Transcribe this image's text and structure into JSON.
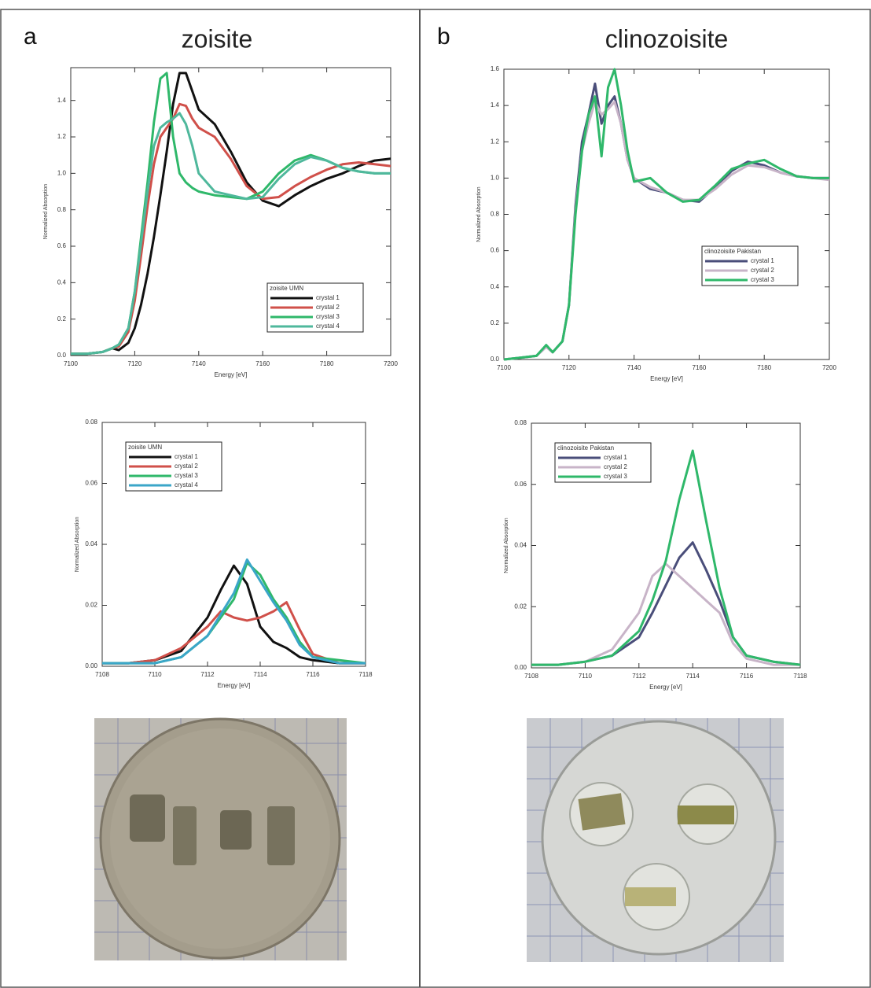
{
  "panels": [
    {
      "label": "a",
      "title": "zoisite"
    },
    {
      "label": "b",
      "title": "clinozoisite"
    }
  ],
  "chart_data": [
    {
      "type": "line",
      "x_label": "Energy [eV]",
      "y_label": "Normalized Absorption",
      "legend_title": "zoisite UMN",
      "legend_position": "lower right",
      "xlim": [
        7100,
        7200
      ],
      "ylim": [
        0,
        1.58
      ],
      "xticks": [
        7100,
        7120,
        7140,
        7160,
        7180,
        7200
      ],
      "yticks": [
        {
          "value": 0,
          "label": "0.0"
        },
        0.2,
        0.4,
        0.6,
        0.8,
        {
          "value": 1,
          "label": "1.0"
        },
        1.2,
        1.4
      ],
      "x": [
        7100,
        7105,
        7110,
        7113,
        7115,
        7118,
        7120,
        7122,
        7124,
        7126,
        7128,
        7130,
        7132,
        7134,
        7136,
        7138,
        7140,
        7145,
        7150,
        7155,
        7160,
        7165,
        7170,
        7175,
        7180,
        7185,
        7190,
        7195,
        7200
      ],
      "series": [
        {
          "name": "crystal 1",
          "color": "#111111",
          "values": [
            0.01,
            0.01,
            0.02,
            0.04,
            0.03,
            0.07,
            0.15,
            0.28,
            0.45,
            0.65,
            0.88,
            1.12,
            1.38,
            1.55,
            1.55,
            1.45,
            1.35,
            1.27,
            1.12,
            0.95,
            0.85,
            0.82,
            0.88,
            0.93,
            0.97,
            1.0,
            1.04,
            1.07,
            1.08
          ]
        },
        {
          "name": "crystal 2",
          "color": "#d0504a",
          "values": [
            0.01,
            0.01,
            0.02,
            0.04,
            0.05,
            0.13,
            0.3,
            0.55,
            0.82,
            1.05,
            1.2,
            1.25,
            1.3,
            1.38,
            1.37,
            1.3,
            1.25,
            1.2,
            1.08,
            0.93,
            0.86,
            0.87,
            0.93,
            0.98,
            1.02,
            1.05,
            1.06,
            1.05,
            1.04
          ]
        },
        {
          "name": "crystal 3",
          "color": "#2fb86a",
          "values": [
            0.01,
            0.01,
            0.02,
            0.04,
            0.06,
            0.15,
            0.35,
            0.65,
            0.95,
            1.28,
            1.52,
            1.55,
            1.2,
            1.0,
            0.95,
            0.92,
            0.9,
            0.88,
            0.87,
            0.86,
            0.9,
            1.0,
            1.07,
            1.1,
            1.07,
            1.03,
            1.01,
            1.0,
            1.0
          ]
        },
        {
          "name": "crystal 4",
          "color": "#4fb89c",
          "values": [
            0.01,
            0.01,
            0.02,
            0.04,
            0.06,
            0.15,
            0.35,
            0.62,
            0.9,
            1.15,
            1.25,
            1.28,
            1.3,
            1.33,
            1.27,
            1.15,
            1.0,
            0.9,
            0.88,
            0.86,
            0.87,
            0.97,
            1.05,
            1.09,
            1.07,
            1.03,
            1.01,
            1.0,
            1.0
          ]
        }
      ]
    },
    {
      "type": "line",
      "x_label": "Energy [eV]",
      "y_label": "Normalized Absorption",
      "legend_title": "zoisite UMN",
      "legend_position": "top left",
      "xlim": [
        7108,
        7118
      ],
      "ylim": [
        0,
        0.08
      ],
      "xticks": [
        7108,
        7110,
        7112,
        7114,
        7116,
        7118
      ],
      "yticks": [
        {
          "value": 0,
          "label": "0.00"
        },
        {
          "value": 0.02,
          "label": "0.02"
        },
        {
          "value": 0.04,
          "label": "0.04"
        },
        {
          "value": 0.06,
          "label": "0.06"
        },
        {
          "value": 0.08,
          "label": "0.08"
        }
      ],
      "x": [
        7108,
        7109,
        7110,
        7111,
        7112,
        7112.5,
        7113,
        7113.5,
        7114,
        7114.5,
        7115,
        7115.5,
        7116,
        7117,
        7118
      ],
      "series": [
        {
          "name": "crystal 1",
          "color": "#111111",
          "values": [
            0.001,
            0.001,
            0.002,
            0.005,
            0.016,
            0.025,
            0.033,
            0.027,
            0.013,
            0.008,
            0.006,
            0.003,
            0.002,
            0.001,
            0.001
          ]
        },
        {
          "name": "crystal 2",
          "color": "#d0504a",
          "values": [
            0.001,
            0.001,
            0.002,
            0.006,
            0.013,
            0.018,
            0.016,
            0.015,
            0.016,
            0.018,
            0.021,
            0.012,
            0.004,
            0.001,
            0.001
          ]
        },
        {
          "name": "crystal 3",
          "color": "#2fb86a",
          "values": [
            0.001,
            0.001,
            0.001,
            0.003,
            0.01,
            0.016,
            0.022,
            0.034,
            0.03,
            0.022,
            0.016,
            0.008,
            0.003,
            0.002,
            0.001
          ]
        },
        {
          "name": "crystal 4",
          "color": "#3aa6c8",
          "values": [
            0.001,
            0.001,
            0.001,
            0.003,
            0.01,
            0.017,
            0.024,
            0.035,
            0.028,
            0.021,
            0.015,
            0.007,
            0.003,
            0.001,
            0.001
          ]
        }
      ]
    },
    {
      "type": "line",
      "x_label": "Energy [eV]",
      "y_label": "Normalized Absorption",
      "legend_title": "clinozoisite Pakistan",
      "legend_position": "center right",
      "xlim": [
        7100,
        7200
      ],
      "ylim": [
        0,
        1.6
      ],
      "xticks": [
        7100,
        7120,
        7140,
        7160,
        7180,
        7200
      ],
      "yticks": [
        {
          "value": 0,
          "label": "0.0"
        },
        0.2,
        0.4,
        0.6,
        0.8,
        {
          "value": 1,
          "label": "1.0"
        },
        1.2,
        1.4,
        1.6
      ],
      "x": [
        7100,
        7105,
        7110,
        7113,
        7115,
        7118,
        7120,
        7122,
        7124,
        7126,
        7128,
        7130,
        7132,
        7134,
        7136,
        7138,
        7140,
        7145,
        7150,
        7155,
        7160,
        7165,
        7170,
        7175,
        7180,
        7185,
        7190,
        7195,
        7200
      ],
      "series": [
        {
          "name": "crystal 1",
          "color": "#4a4e7a",
          "values": [
            0.0,
            0.01,
            0.02,
            0.07,
            0.04,
            0.1,
            0.3,
            0.85,
            1.2,
            1.35,
            1.52,
            1.3,
            1.4,
            1.45,
            1.3,
            1.1,
            1.0,
            0.94,
            0.92,
            0.88,
            0.87,
            0.95,
            1.04,
            1.09,
            1.07,
            1.03,
            1.01,
            1.0,
            1.0
          ]
        },
        {
          "name": "crystal 2",
          "color": "#c8b4c8",
          "values": [
            0.0,
            0.01,
            0.02,
            0.07,
            0.04,
            0.1,
            0.3,
            0.82,
            1.15,
            1.3,
            1.42,
            1.35,
            1.38,
            1.42,
            1.3,
            1.1,
            1.0,
            0.95,
            0.92,
            0.88,
            0.88,
            0.94,
            1.02,
            1.07,
            1.06,
            1.03,
            1.01,
            1.0,
            0.99
          ]
        },
        {
          "name": "crystal 3",
          "color": "#2fb86a",
          "values": [
            0.0,
            0.01,
            0.02,
            0.08,
            0.04,
            0.1,
            0.3,
            0.8,
            1.15,
            1.35,
            1.45,
            1.12,
            1.5,
            1.6,
            1.4,
            1.15,
            0.98,
            1.0,
            0.92,
            0.87,
            0.88,
            0.96,
            1.05,
            1.08,
            1.1,
            1.05,
            1.01,
            1.0,
            1.0
          ]
        }
      ]
    },
    {
      "type": "line",
      "x_label": "Energy [eV]",
      "y_label": "Normalized Absorption",
      "legend_title": "clinozoisite Pakistan",
      "legend_position": "top left",
      "xlim": [
        7108,
        7118
      ],
      "ylim": [
        0,
        0.08
      ],
      "xticks": [
        7108,
        7110,
        7112,
        7114,
        7116,
        7118
      ],
      "yticks": [
        {
          "value": 0,
          "label": "0.00"
        },
        {
          "value": 0.02,
          "label": "0.02"
        },
        {
          "value": 0.04,
          "label": "0.04"
        },
        {
          "value": 0.06,
          "label": "0.06"
        },
        {
          "value": 0.08,
          "label": "0.08"
        }
      ],
      "x": [
        7108,
        7109,
        7110,
        7111,
        7112,
        7112.5,
        7113,
        7113.5,
        7114,
        7114.5,
        7115,
        7115.5,
        7116,
        7117,
        7118
      ],
      "series": [
        {
          "name": "crystal 1",
          "color": "#4a4e7a",
          "values": [
            0.001,
            0.001,
            0.002,
            0.004,
            0.01,
            0.018,
            0.027,
            0.036,
            0.041,
            0.032,
            0.022,
            0.01,
            0.004,
            0.002,
            0.001
          ]
        },
        {
          "name": "crystal 2",
          "color": "#c8b4c8",
          "values": [
            0.001,
            0.001,
            0.002,
            0.006,
            0.018,
            0.03,
            0.034,
            0.03,
            0.026,
            0.022,
            0.018,
            0.008,
            0.003,
            0.001,
            0.001
          ]
        },
        {
          "name": "crystal 3",
          "color": "#2fb86a",
          "values": [
            0.001,
            0.001,
            0.002,
            0.004,
            0.012,
            0.022,
            0.035,
            0.055,
            0.071,
            0.048,
            0.026,
            0.01,
            0.004,
            0.002,
            0.001
          ]
        }
      ]
    }
  ]
}
